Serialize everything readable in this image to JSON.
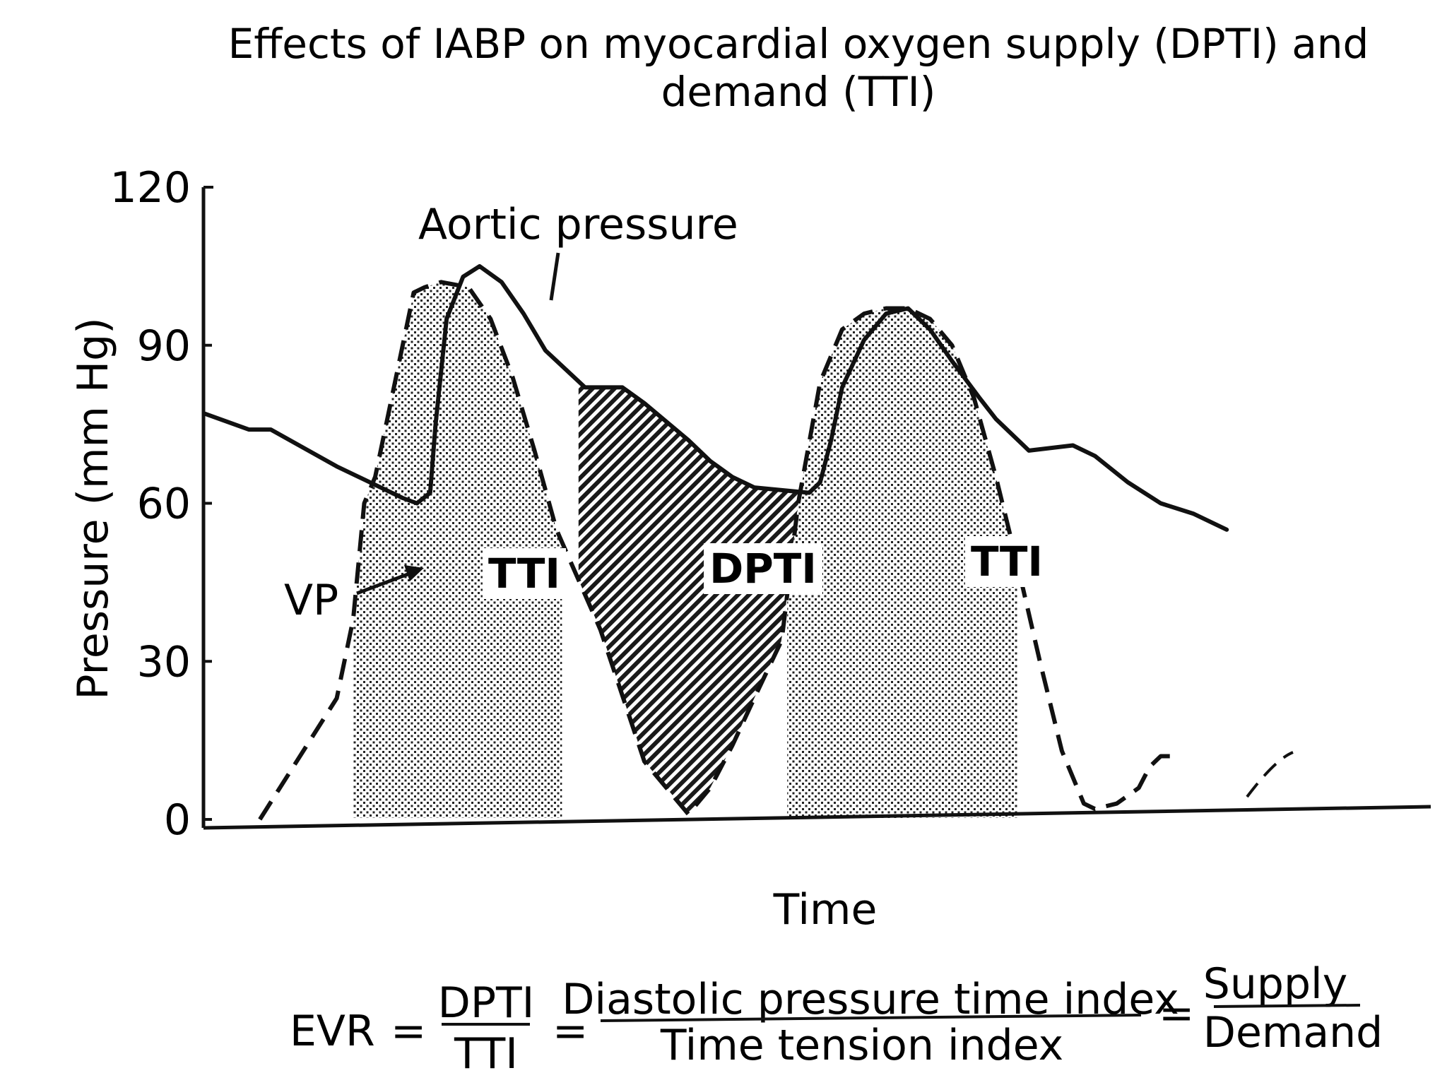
{
  "chart_data": {
    "type": "line",
    "title_lines": [
      "Effects of IABP on myocardial oxygen supply (DPTI) and",
      "demand (TTI)"
    ],
    "xlabel": "Time",
    "ylabel": "Pressure (mm Hg)",
    "ylim": [
      0,
      120
    ],
    "xlim": [
      0,
      100
    ],
    "yticks": [
      "0",
      "30",
      "60",
      "90",
      "120"
    ],
    "series": [
      {
        "name": "Aortic pressure",
        "style": "solid",
        "x": [
          0,
          4,
          6,
          12,
          18,
          19.3,
          20.5,
          21,
          22,
          23.5,
          25,
          27,
          29,
          31,
          34.6,
          36,
          38,
          40,
          44,
          46,
          48,
          50,
          55,
          56,
          57,
          58,
          60,
          62,
          64,
          66,
          68,
          70.5,
          72,
          75,
          79,
          81,
          84,
          87,
          90,
          93
        ],
        "y": [
          77,
          74,
          74,
          67,
          61,
          60,
          62,
          75,
          95,
          103,
          105,
          102,
          96,
          89,
          82,
          82,
          82,
          79,
          72,
          68,
          65,
          63,
          62,
          64,
          72,
          82,
          91,
          96,
          97,
          93,
          87,
          80,
          76,
          70,
          71,
          69,
          64,
          60,
          58,
          55
        ]
      },
      {
        "name": "VP",
        "style": "dashed",
        "x": [
          5,
          12,
          13.5,
          14.5,
          15.5,
          17,
          19,
          20,
          21.5,
          24,
          26,
          28,
          30,
          32,
          36,
          40,
          44,
          46,
          48,
          50,
          52.5,
          54,
          56,
          58,
          60,
          62,
          64,
          66,
          68,
          70,
          72,
          74,
          76,
          78,
          80,
          81,
          83,
          85,
          86,
          87,
          88
        ],
        "y": [
          0,
          23,
          38,
          60,
          65,
          80,
          100,
          101,
          102,
          101,
          95,
          84,
          70,
          55,
          36,
          11,
          1,
          6,
          14,
          23,
          34,
          60,
          83,
          93,
          96,
          97,
          97,
          95,
          90,
          80,
          65,
          48,
          30,
          13,
          3,
          2,
          3,
          6,
          10,
          12,
          12
        ]
      }
    ],
    "regions": [
      {
        "label": "TTI",
        "pattern": "dots",
        "x_from": 13.5,
        "x_to": 32.5,
        "bound": "VP"
      },
      {
        "label": "DPTI",
        "pattern": "hatch",
        "x_from": 34,
        "x_to": 55.5,
        "bound": "between Aortic pressure and VP"
      },
      {
        "label": "TTI",
        "pattern": "dots",
        "x_from": 53,
        "x_to": 74,
        "bound": "VP"
      }
    ],
    "annotations": [
      "Aortic pressure",
      "VP",
      "TTI",
      "DPTI",
      "TTI"
    ]
  },
  "equation": {
    "lhs": "EVR",
    "eq1": "=",
    "ratio_num": "DPTI",
    "ratio_den": "TTI",
    "eq2": "=",
    "full_num": "Diastolic pressure time index",
    "full_den": "Time tension index",
    "eq3": "=",
    "result_num": "Supply",
    "result_den": "Demand"
  }
}
